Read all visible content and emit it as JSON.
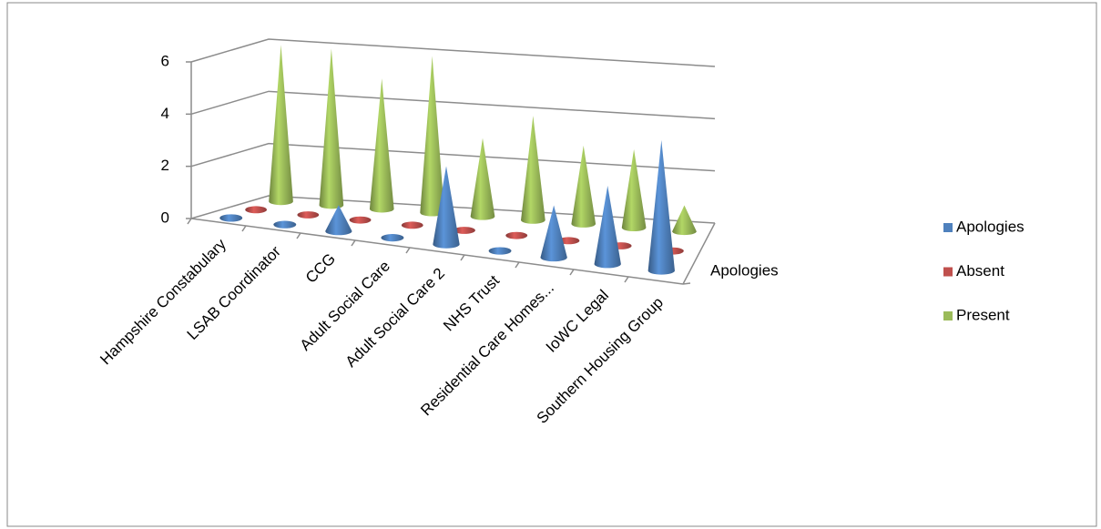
{
  "chart_data": {
    "type": "cone3d",
    "categories": [
      "Hampshire Constabulary",
      "LSAB Coordinator",
      "CCG",
      "Adult Social Care",
      "Adult Social Care 2",
      "NHS Trust",
      "Residential Care Homes...",
      "IoWC Legal",
      "Southern Housing Group"
    ],
    "series": [
      {
        "name": "Apologies",
        "color": "#4f81bd",
        "values": [
          0,
          0,
          1,
          0,
          3,
          0,
          2,
          3,
          5
        ]
      },
      {
        "name": "Absent",
        "color": "#c0504d",
        "values": [
          0,
          0,
          0,
          0,
          0,
          0,
          0,
          0,
          0
        ]
      },
      {
        "name": "Present",
        "color": "#9bbb59",
        "values": [
          6,
          6,
          5,
          6,
          3,
          4,
          3,
          3,
          1
        ]
      }
    ],
    "ylim": [
      0,
      6
    ],
    "yticks": [
      0,
      2,
      4,
      6
    ],
    "grid": true,
    "legend": "right"
  }
}
